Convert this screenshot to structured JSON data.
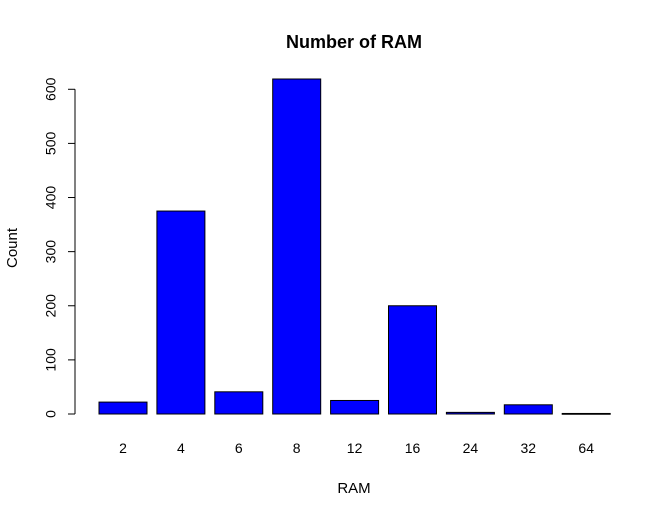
{
  "chart_data": {
    "type": "bar",
    "title": "Number of RAM",
    "xlabel": "RAM",
    "ylabel": "Count",
    "categories": [
      "2",
      "4",
      "6",
      "8",
      "12",
      "16",
      "24",
      "32",
      "64"
    ],
    "values": [
      22,
      375,
      41,
      619,
      25,
      200,
      3,
      17,
      1
    ],
    "ylim": [
      0,
      650
    ],
    "y_ticks": [
      "0",
      "100",
      "200",
      "300",
      "400",
      "500",
      "600"
    ],
    "grid": false,
    "bar_color": "#0000ff",
    "bar_border_color": "#000000"
  }
}
